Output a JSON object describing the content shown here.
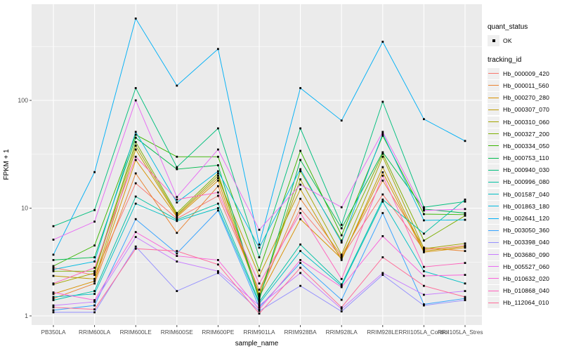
{
  "chart_data": {
    "type": "line",
    "title": "",
    "xlabel": "sample_name",
    "ylabel": "FPKM + 1",
    "x_categories": [
      "PB350LA",
      "RRIM600LA",
      "RRIM600LE",
      "RRIM600SE",
      "RRIM600PE",
      "RRIM901LA",
      "RRIM928BA",
      "RRIM928LA",
      "RRIM928LE",
      "RRII105LA_Control",
      "RRII105LA_Stressed"
    ],
    "y_scale": "log10",
    "y_tick_values": [
      1,
      10,
      100
    ],
    "y_tick_labels": [
      "1",
      "10",
      "100"
    ],
    "y_minor_log_values": [
      0.5,
      1.5,
      2.5
    ],
    "ylim": [
      1,
      650
    ],
    "grid": "on",
    "panel_bg": "#EBEBEB",
    "grid_color": "#FFFFFF",
    "point_color": "#000000",
    "axis_text_color": "#4D4D4D",
    "tick_color": "#333333",
    "legend_position": "right",
    "legend": {
      "quant_status": {
        "title": "quant_status",
        "items": [
          {
            "label": "OK",
            "glyph": "black-point"
          }
        ]
      },
      "tracking_id": {
        "title": "tracking_id"
      }
    },
    "series": [
      {
        "name": "Hb_000009_420",
        "color": "#F8766D",
        "values": [
          2.8,
          2.4,
          17,
          8.0,
          13,
          1.75,
          9.9,
          3.5,
          13.4,
          4.1,
          4.5
        ]
      },
      {
        "name": "Hb_000011_560",
        "color": "#EA8331",
        "values": [
          1.45,
          2.0,
          21,
          5.9,
          16,
          1.55,
          12.2,
          3.6,
          18,
          4.3,
          4.0
        ]
      },
      {
        "name": "Hb_000270_280",
        "color": "#D89000",
        "values": [
          1.6,
          2.1,
          28,
          8.3,
          18,
          1.5,
          7.9,
          3.4,
          21.5,
          3.9,
          4.3
        ]
      },
      {
        "name": "Hb_000307_070",
        "color": "#C09B00",
        "values": [
          2.35,
          2.2,
          35,
          8.5,
          19,
          2.35,
          15,
          3.3,
          24,
          4.0,
          4.4
        ]
      },
      {
        "name": "Hb_000310_060",
        "color": "#A3A500",
        "values": [
          1.96,
          2.5,
          38,
          8.7,
          20,
          1.6,
          18.5,
          3.7,
          30,
          4.2,
          4.7
        ]
      },
      {
        "name": "Hb_000327_200",
        "color": "#7CAE00",
        "values": [
          2.6,
          2.6,
          41,
          9.0,
          21,
          1.45,
          22,
          5.0,
          32,
          5.0,
          8.5
        ]
      },
      {
        "name": "Hb_000334_050",
        "color": "#39B600",
        "values": [
          2.9,
          4.5,
          48,
          30,
          30,
          2.65,
          34,
          5.6,
          47,
          8.8,
          8.7
        ]
      },
      {
        "name": "Hb_000753_110",
        "color": "#00BB4E",
        "values": [
          3.3,
          3.5,
          45,
          23,
          25,
          1.4,
          28,
          6.5,
          33,
          9.8,
          9.0
        ]
      },
      {
        "name": "Hb_000940_030",
        "color": "#00BF7D",
        "values": [
          6.8,
          9.6,
          130,
          24,
          55,
          3.5,
          55,
          7.0,
          97,
          10.2,
          11.5
        ]
      },
      {
        "name": "Hb_000996_080",
        "color": "#00C1A3",
        "values": [
          1.4,
          1.7,
          12.8,
          7.8,
          11,
          1.35,
          4.6,
          1.96,
          12,
          5.8,
          12
        ]
      },
      {
        "name": "Hb_001587_040",
        "color": "#00BFC4",
        "values": [
          1.5,
          1.6,
          11,
          7.6,
          10,
          1.3,
          4.0,
          1.9,
          11.5,
          2.6,
          2.0
        ]
      },
      {
        "name": "Hb_001863_180",
        "color": "#00BAE0",
        "values": [
          2.7,
          3.2,
          51,
          11.3,
          22,
          4.3,
          23,
          4.8,
          49,
          7.7,
          7.8
        ]
      },
      {
        "name": "Hb_002641_120",
        "color": "#00B0F6",
        "values": [
          3.7,
          21.6,
          575,
          137,
          300,
          4.6,
          130,
          65,
          350,
          67,
          42
        ]
      },
      {
        "name": "Hb_003050_360",
        "color": "#35A2FF",
        "values": [
          1.13,
          1.25,
          7.9,
          3.8,
          9.5,
          1.2,
          3.1,
          1.41,
          9.0,
          1.28,
          1.45
        ]
      },
      {
        "name": "Hb_003398_040",
        "color": "#9590FF",
        "values": [
          1.08,
          1.08,
          4.4,
          1.7,
          2.5,
          1.11,
          1.9,
          1.1,
          2.4,
          1.25,
          1.4
        ]
      },
      {
        "name": "Hb_003680_090",
        "color": "#C77CFF",
        "values": [
          1.25,
          1.35,
          5.4,
          3.2,
          2.6,
          1.25,
          2.5,
          1.16,
          2.5,
          1.57,
          1.7
        ]
      },
      {
        "name": "Hb_005527_060",
        "color": "#E76BF3",
        "values": [
          5.1,
          7.5,
          100,
          12.7,
          35,
          6.3,
          16.5,
          10.2,
          51,
          9.5,
          9.8
        ]
      },
      {
        "name": "Hb_010632_020",
        "color": "#FA62DB",
        "values": [
          1.65,
          1.4,
          6.0,
          3.6,
          3.3,
          1.15,
          3.3,
          1.85,
          5.5,
          2.35,
          2.4
        ]
      },
      {
        "name": "Hb_010868_040",
        "color": "#FF62BC",
        "values": [
          2.0,
          2.8,
          30,
          12.0,
          14,
          2.0,
          9.0,
          2.2,
          20,
          2.85,
          3.1
        ]
      },
      {
        "name": "Hb_112064_010",
        "color": "#FF6A98",
        "values": [
          1.2,
          1.15,
          4.2,
          4.0,
          3.0,
          1.05,
          2.8,
          1.2,
          3.5,
          1.9,
          1.5
        ]
      }
    ]
  }
}
